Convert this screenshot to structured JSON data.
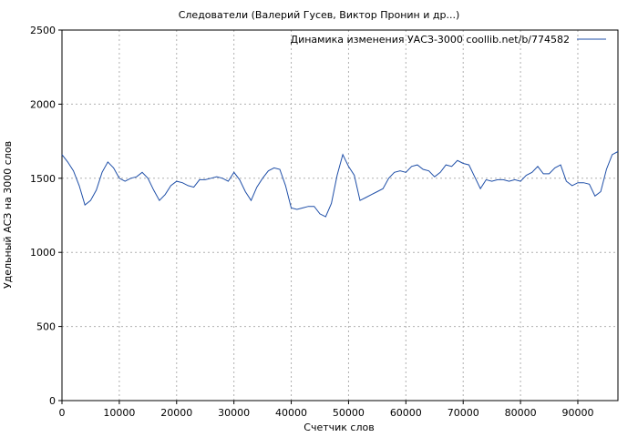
{
  "chart_data": {
    "type": "line",
    "title": "Следователи (Валерий Гусев, Виктор Пронин и др...)",
    "xlabel": "Счетчик слов",
    "ylabel": "Удельный АСЗ на 3000 слов",
    "xlim": [
      0,
      97000
    ],
    "ylim": [
      0,
      2500
    ],
    "xticks": [
      0,
      10000,
      20000,
      30000,
      40000,
      50000,
      60000,
      70000,
      80000,
      90000
    ],
    "yticks": [
      0,
      500,
      1000,
      1500,
      2000,
      2500
    ],
    "grid": true,
    "legend_position": "top-right",
    "series": [
      {
        "name": "Динамика изменения УАСЗ-3000 coollib.net/b/774582",
        "color": "#1f4fa8",
        "x": [
          0,
          1000,
          2000,
          3000,
          4000,
          5000,
          6000,
          7000,
          8000,
          9000,
          10000,
          11000,
          12000,
          13000,
          14000,
          15000,
          16000,
          17000,
          18000,
          19000,
          20000,
          21000,
          22000,
          23000,
          24000,
          25000,
          26000,
          27000,
          28000,
          29000,
          30000,
          31000,
          32000,
          33000,
          34000,
          35000,
          36000,
          37000,
          38000,
          39000,
          40000,
          41000,
          42000,
          43000,
          44000,
          45000,
          46000,
          47000,
          48000,
          49000,
          50000,
          51000,
          52000,
          53000,
          54000,
          55000,
          56000,
          57000,
          58000,
          59000,
          60000,
          61000,
          62000,
          63000,
          64000,
          65000,
          66000,
          67000,
          68000,
          69000,
          70000,
          71000,
          72000,
          73000,
          74000,
          75000,
          76000,
          77000,
          78000,
          79000,
          80000,
          81000,
          82000,
          83000,
          84000,
          85000,
          86000,
          87000,
          88000,
          89000,
          90000,
          91000,
          92000,
          93000,
          94000,
          95000,
          96000,
          97000
        ],
        "values": [
          1660,
          1610,
          1550,
          1450,
          1320,
          1350,
          1420,
          1540,
          1610,
          1570,
          1500,
          1480,
          1500,
          1510,
          1540,
          1500,
          1420,
          1350,
          1390,
          1450,
          1480,
          1470,
          1450,
          1440,
          1490,
          1490,
          1500,
          1510,
          1500,
          1480,
          1540,
          1490,
          1410,
          1350,
          1440,
          1500,
          1550,
          1570,
          1560,
          1450,
          1300,
          1290,
          1300,
          1310,
          1310,
          1260,
          1240,
          1330,
          1520,
          1660,
          1580,
          1520,
          1350,
          1370,
          1390,
          1410,
          1430,
          1500,
          1540,
          1550,
          1540,
          1580,
          1590,
          1560,
          1550,
          1510,
          1540,
          1590,
          1580,
          1620,
          1600,
          1590,
          1510,
          1430,
          1490,
          1480,
          1490,
          1490,
          1480,
          1490,
          1480,
          1520,
          1540,
          1580,
          1530,
          1530,
          1570,
          1590,
          1480,
          1450,
          1470,
          1470,
          1460,
          1380,
          1410,
          1560,
          1660,
          1680
        ]
      }
    ]
  }
}
